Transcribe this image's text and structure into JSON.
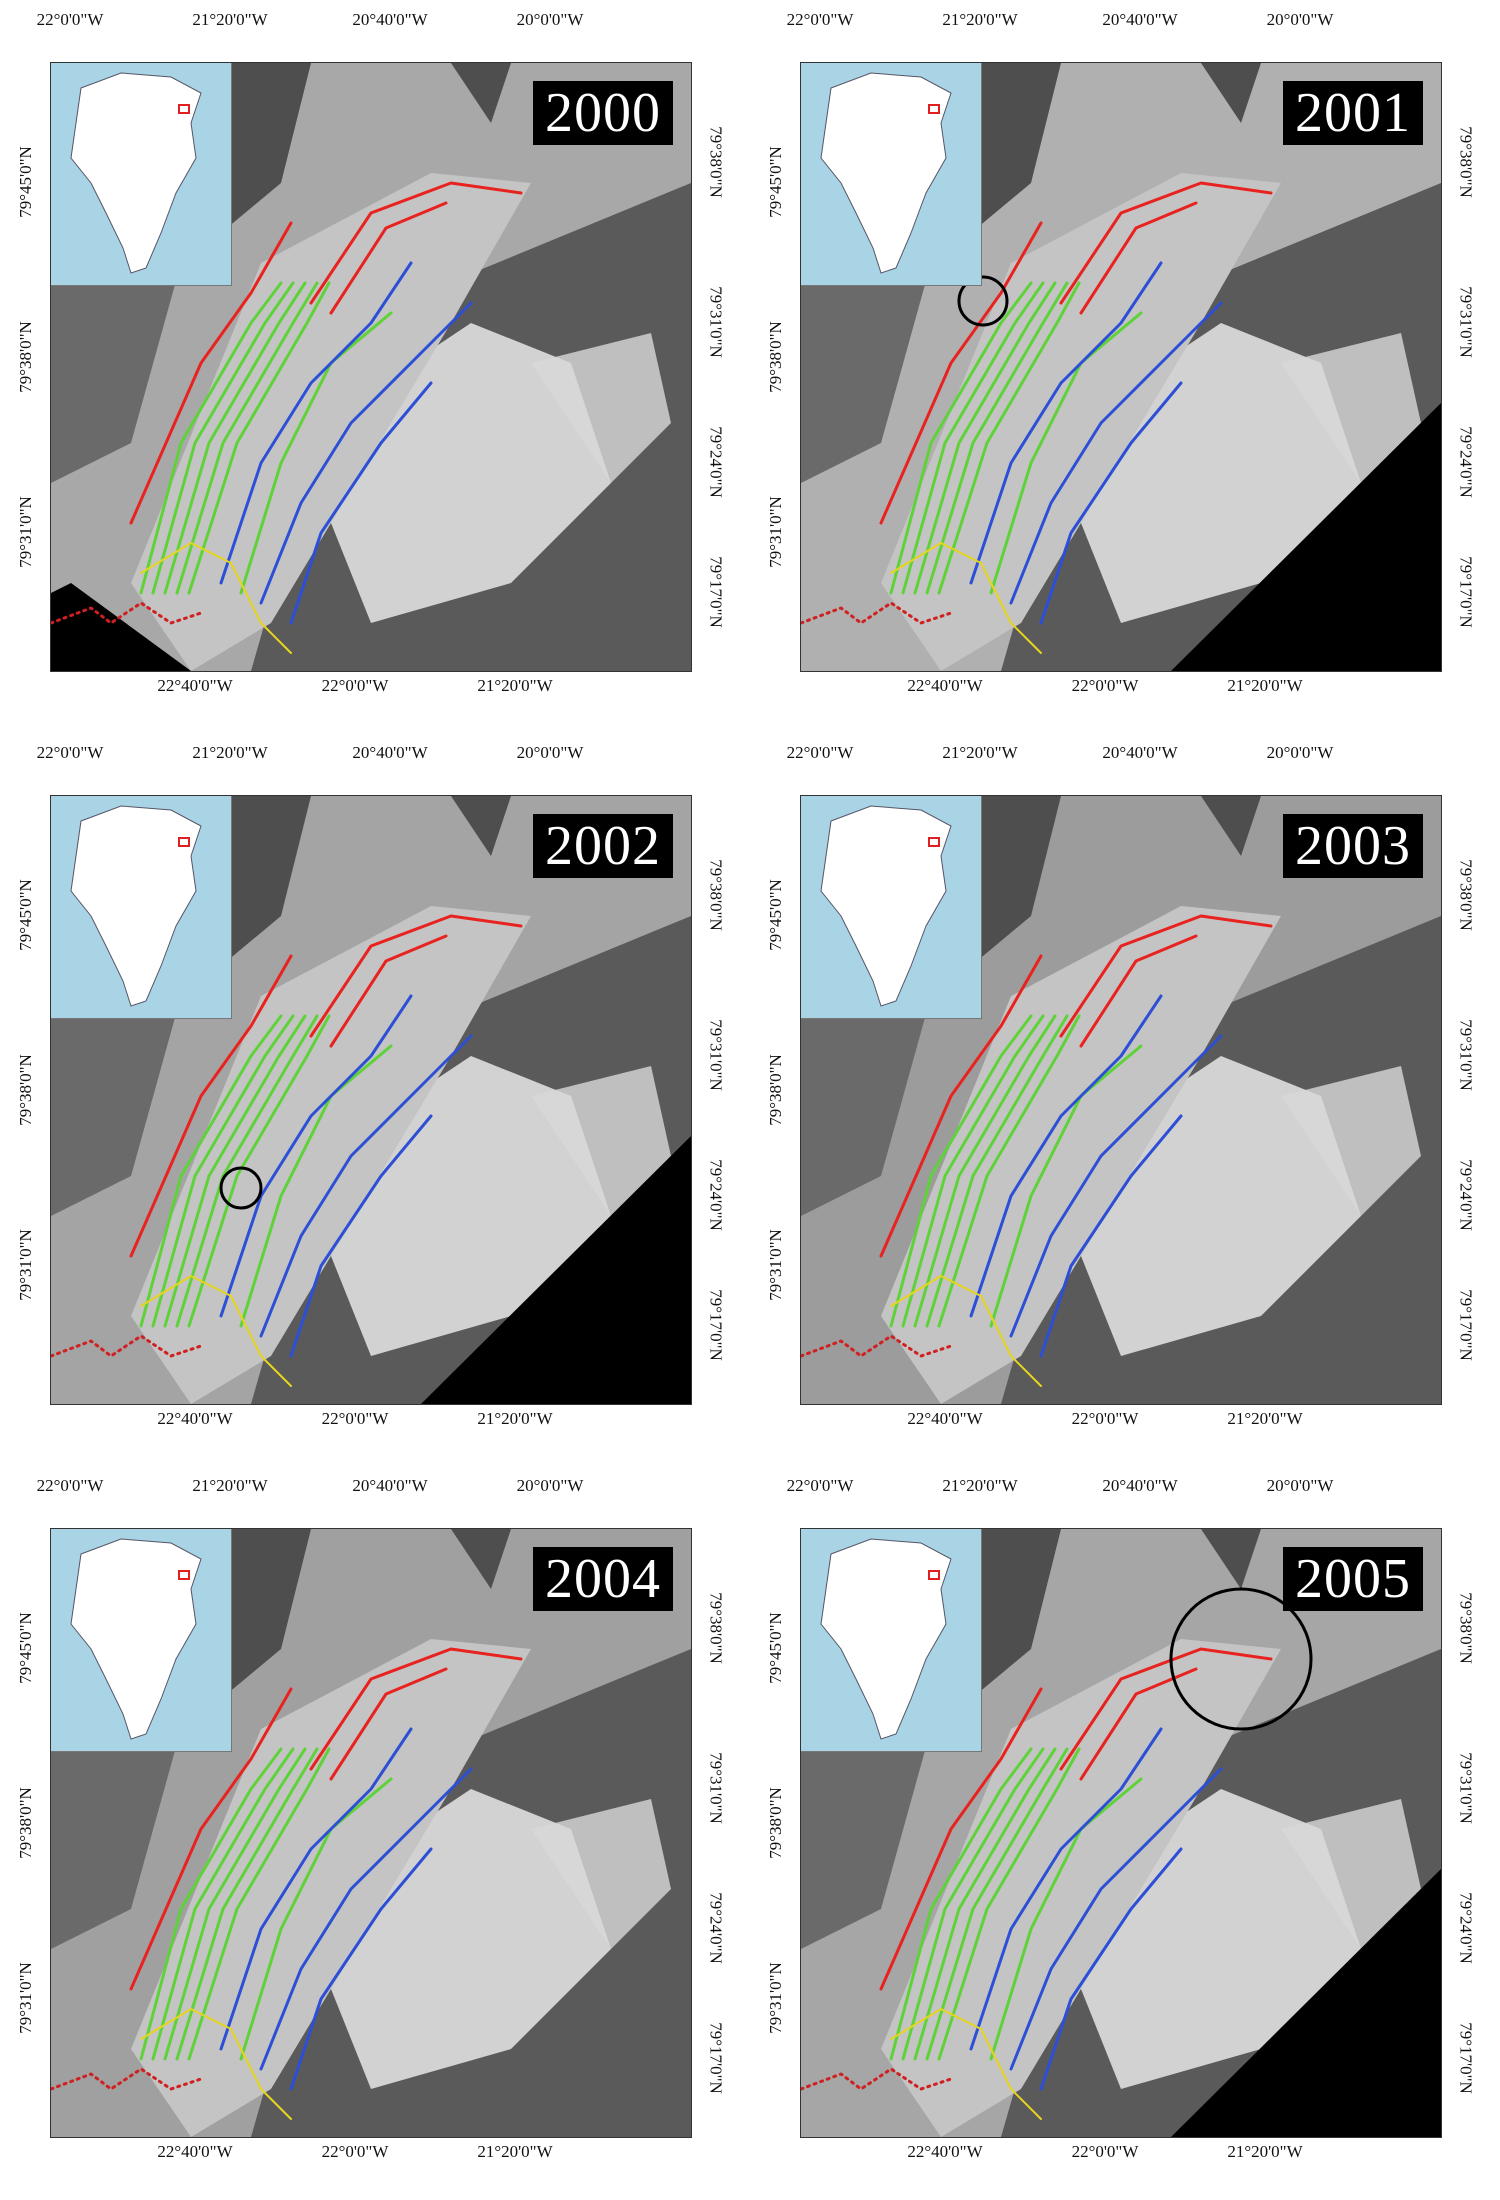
{
  "panels": [
    {
      "year": "2000"
    },
    {
      "year": "2001"
    },
    {
      "year": "2002"
    },
    {
      "year": "2003"
    },
    {
      "year": "2004"
    },
    {
      "year": "2005"
    }
  ],
  "axes": {
    "top_ticks": [
      "22°0'0\"W",
      "21°20'0\"W",
      "20°40'0\"W",
      "20°0'0\"W"
    ],
    "bottom_ticks": [
      "22°40'0\"W",
      "22°0'0\"W",
      "21°20'0\"W"
    ],
    "left_ticks": [
      "79°45'0\"N",
      "79°38'0\"N",
      "79°31'0\"N"
    ],
    "right_ticks": [
      "79°38'0\"N",
      "79°31'0\"N",
      "79°24'0\"N",
      "79°17'0\"N"
    ]
  },
  "colors": {
    "red_line": "#e8231f",
    "green_line": "#5fd23a",
    "blue_line": "#2c4fd6",
    "yellow_line": "#e6d51f",
    "dotted_red": "#d02020",
    "inset_ocean": "#a9d4e6",
    "inset_land": "#ffffff",
    "inset_marker": "#e02020"
  }
}
